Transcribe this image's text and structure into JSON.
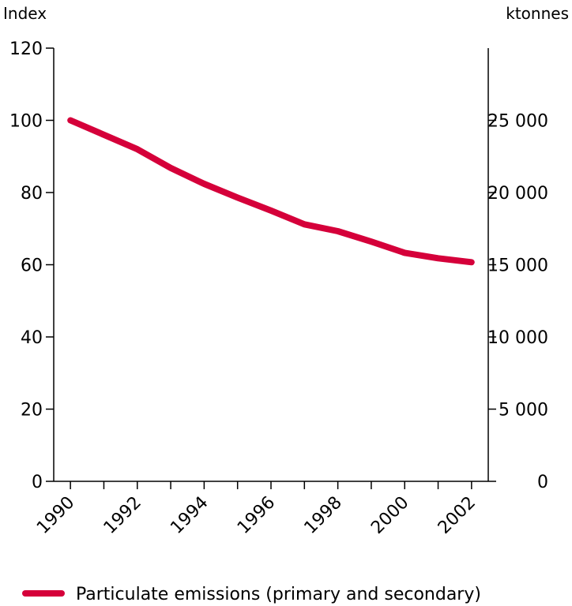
{
  "chart_data": {
    "type": "line",
    "title": "",
    "y_left_label": "Index",
    "y_right_label": "ktonnes",
    "xlim": [
      1989.5,
      2002.5
    ],
    "ylim_left": [
      0,
      120
    ],
    "ylim_right": [
      0,
      30000
    ],
    "x_ticks": [
      "1990",
      "1992",
      "1994",
      "1996",
      "1998",
      "2000",
      "2002"
    ],
    "y_left_ticks": [
      "0",
      "20",
      "40",
      "60",
      "80",
      "100",
      "120"
    ],
    "y_right_ticks": [
      "0",
      "5 000",
      "10 000",
      "15 000",
      "20 000",
      "25 000"
    ],
    "y_right_tick_values": [
      0,
      5000,
      10000,
      15000,
      20000,
      25000
    ],
    "grid": false,
    "legend_position": "bottom-left",
    "series": [
      {
        "name": "Particulate emissions (primary and secondary)",
        "color": "#d5003a",
        "x": [
          1990,
          1991,
          1992,
          1993,
          1994,
          1995,
          1996,
          1997,
          1998,
          1999,
          2000,
          2001,
          2002
        ],
        "values": [
          100,
          96,
          92,
          86.8,
          82.4,
          78.6,
          75,
          71.2,
          69.3,
          66.4,
          63.3,
          61.8,
          60.7
        ]
      }
    ]
  }
}
